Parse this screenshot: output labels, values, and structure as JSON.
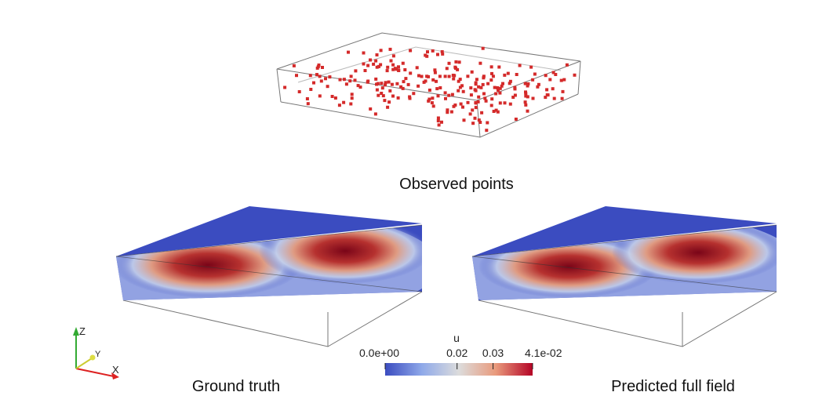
{
  "panels": [
    {
      "caption": "Observed points"
    },
    {
      "caption": "Ground truth"
    },
    {
      "caption": "Predicted full field"
    }
  ],
  "colorbar": {
    "title": "u",
    "lim": [
      0,
      0.041
    ],
    "ticks": [
      {
        "value": 0,
        "label": "0.0e+00"
      },
      0.02,
      0.03,
      {
        "value": 0.041,
        "label": "4.1e-02"
      }
    ]
  },
  "axes_triad": {
    "labels": [
      "Z",
      "Y",
      "X"
    ]
  }
}
